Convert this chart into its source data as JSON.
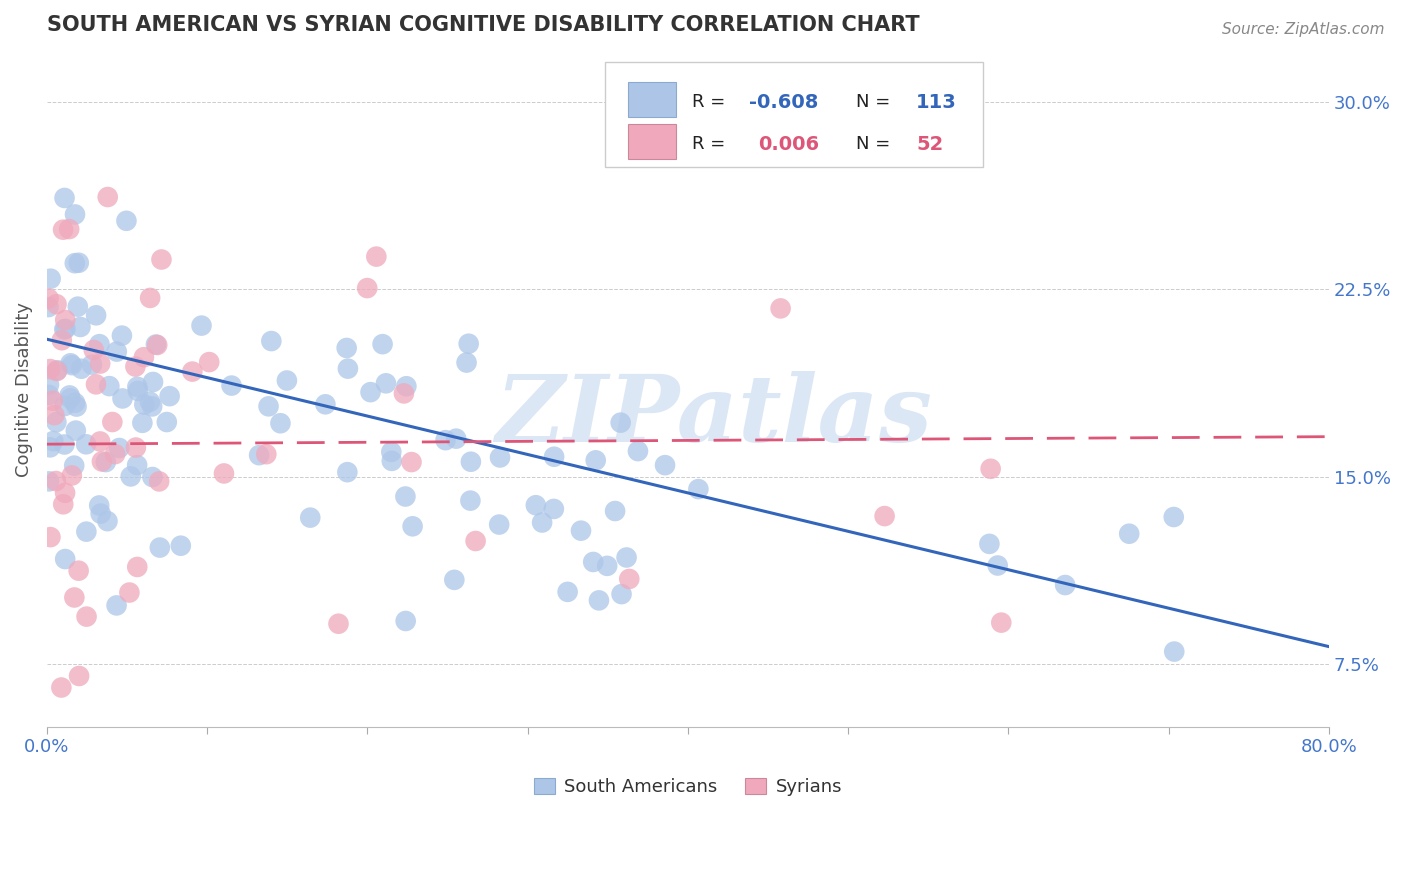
{
  "title": "SOUTH AMERICAN VS SYRIAN COGNITIVE DISABILITY CORRELATION CHART",
  "source": "Source: ZipAtlas.com",
  "ylabel": "Cognitive Disability",
  "xlim": [
    0.0,
    0.8
  ],
  "ylim": [
    0.05,
    0.32
  ],
  "yticks": [
    0.075,
    0.15,
    0.225,
    0.3
  ],
  "ytick_labels": [
    "7.5%",
    "15.0%",
    "22.5%",
    "30.0%"
  ],
  "xticks": [
    0.0,
    0.1,
    0.2,
    0.3,
    0.4,
    0.5,
    0.6,
    0.7,
    0.8
  ],
  "xtick_labels": [
    "0.0%",
    "",
    "",
    "",
    "",
    "",
    "",
    "",
    "80.0%"
  ],
  "blue_R": -0.608,
  "blue_N": 113,
  "pink_R": 0.006,
  "pink_N": 52,
  "blue_color": "#adc6e8",
  "pink_color": "#f0a8bc",
  "blue_line_color": "#3366bb",
  "pink_line_color": "#dd5577",
  "watermark": "ZIPatlas",
  "watermark_color": "#c5d8f0",
  "legend_label_blue": "South Americans",
  "legend_label_pink": "Syrians",
  "background_color": "#ffffff",
  "grid_color": "#cccccc",
  "title_color": "#333333",
  "axis_label_color": "#555555",
  "tick_color": "#4477cc",
  "blue_line_start_y": 0.205,
  "blue_line_end_y": 0.082,
  "pink_line_y": 0.163,
  "source_color": "#888888"
}
